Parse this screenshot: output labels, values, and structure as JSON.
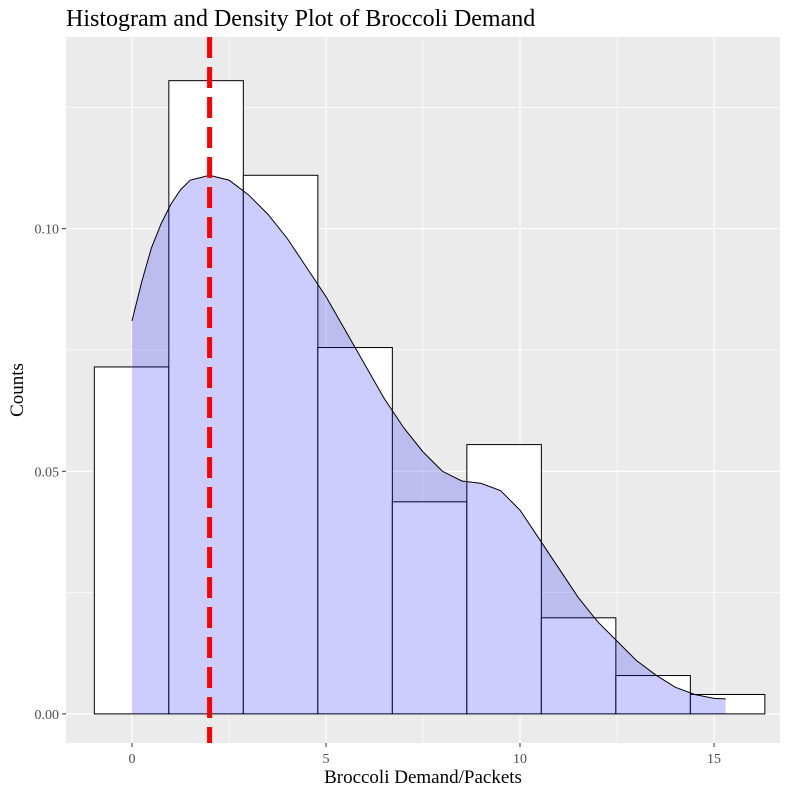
{
  "chart_data": {
    "type": "histogram",
    "title": "Histogram and Density Plot of Broccoli Demand",
    "xlabel": "Broccoli Demand/Packets",
    "ylabel": "Counts",
    "xlim": [
      -1.7,
      16.7
    ],
    "ylim": [
      -0.006,
      0.1395
    ],
    "x_ticks": [
      0,
      5,
      10,
      15
    ],
    "x_tick_labels": [
      "0",
      "5",
      "10",
      "15"
    ],
    "y_ticks": [
      0.0,
      0.05,
      0.1
    ],
    "y_tick_labels": [
      "0.00",
      "0.05",
      "0.10"
    ],
    "grid": true,
    "histogram": {
      "bin_edges": [
        -0.97,
        0.95,
        2.87,
        4.79,
        6.71,
        8.63,
        10.55,
        12.47,
        14.39,
        16.31
      ],
      "values": [
        0.0715,
        0.1305,
        0.111,
        0.0755,
        0.0437,
        0.0555,
        0.0198,
        0.0079,
        0.004
      ],
      "fill": "#ffffff",
      "stroke": "#000000"
    },
    "density": {
      "x": [
        0,
        0.25,
        0.5,
        0.75,
        1,
        1.25,
        1.5,
        1.75,
        2,
        2.25,
        2.5,
        2.75,
        3,
        3.5,
        4,
        4.5,
        5,
        5.5,
        6,
        6.5,
        7,
        7.5,
        8,
        8.5,
        9,
        9.5,
        10,
        10.5,
        11,
        11.5,
        12,
        12.5,
        13,
        13.5,
        14,
        14.5,
        15,
        15.3
      ],
      "y": [
        0.081,
        0.089,
        0.096,
        0.101,
        0.105,
        0.108,
        0.11,
        0.1105,
        0.111,
        0.1105,
        0.11,
        0.1085,
        0.107,
        0.103,
        0.098,
        0.092,
        0.086,
        0.079,
        0.072,
        0.065,
        0.059,
        0.054,
        0.05,
        0.048,
        0.0475,
        0.046,
        0.042,
        0.036,
        0.03,
        0.024,
        0.019,
        0.015,
        0.011,
        0.008,
        0.0055,
        0.004,
        0.0032,
        0.0031
      ],
      "fill": "#0000ff",
      "fill_opacity": 0.2,
      "stroke": "#000000"
    },
    "vline": {
      "x": 2,
      "color": "#ff0000",
      "style": "dashed"
    },
    "panel_background": "#ebebeb",
    "grid_color": "#ffffff"
  }
}
